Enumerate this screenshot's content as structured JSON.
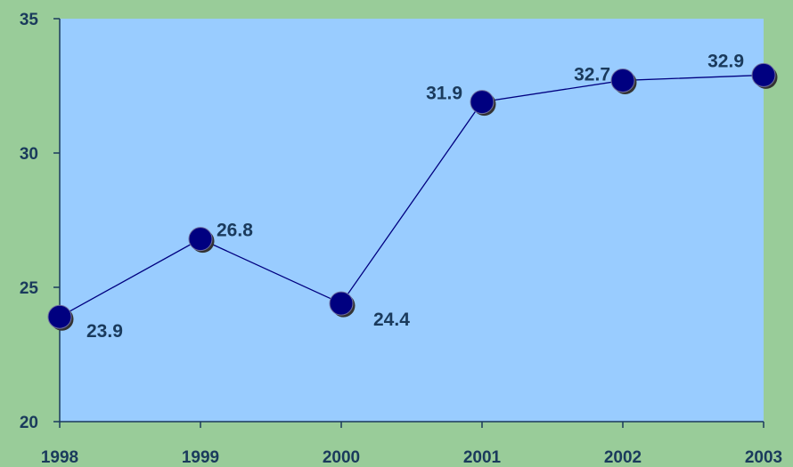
{
  "colors": {
    "background": "#99cc99",
    "plot_area": "#99ccff",
    "axis": "#1a3a5c",
    "line": "#000080",
    "marker": "#000080",
    "marker_shadow": "#333333",
    "text": "#1a3a5c"
  },
  "chart_data": {
    "type": "line",
    "categories": [
      "1998",
      "1999",
      "2000",
      "2001",
      "2002",
      "2003"
    ],
    "series": [
      {
        "values": [
          23.9,
          26.8,
          24.4,
          31.9,
          32.7,
          32.9
        ],
        "labels": [
          "23.9",
          "26.8",
          "24.4",
          "31.9",
          "32.7",
          "32.9"
        ]
      }
    ],
    "y_ticks": [
      "20",
      "25",
      "30",
      "35"
    ],
    "ylim": [
      20,
      35
    ],
    "title": "",
    "xlabel": "",
    "ylabel": "",
    "grid": false,
    "legend": "none"
  }
}
